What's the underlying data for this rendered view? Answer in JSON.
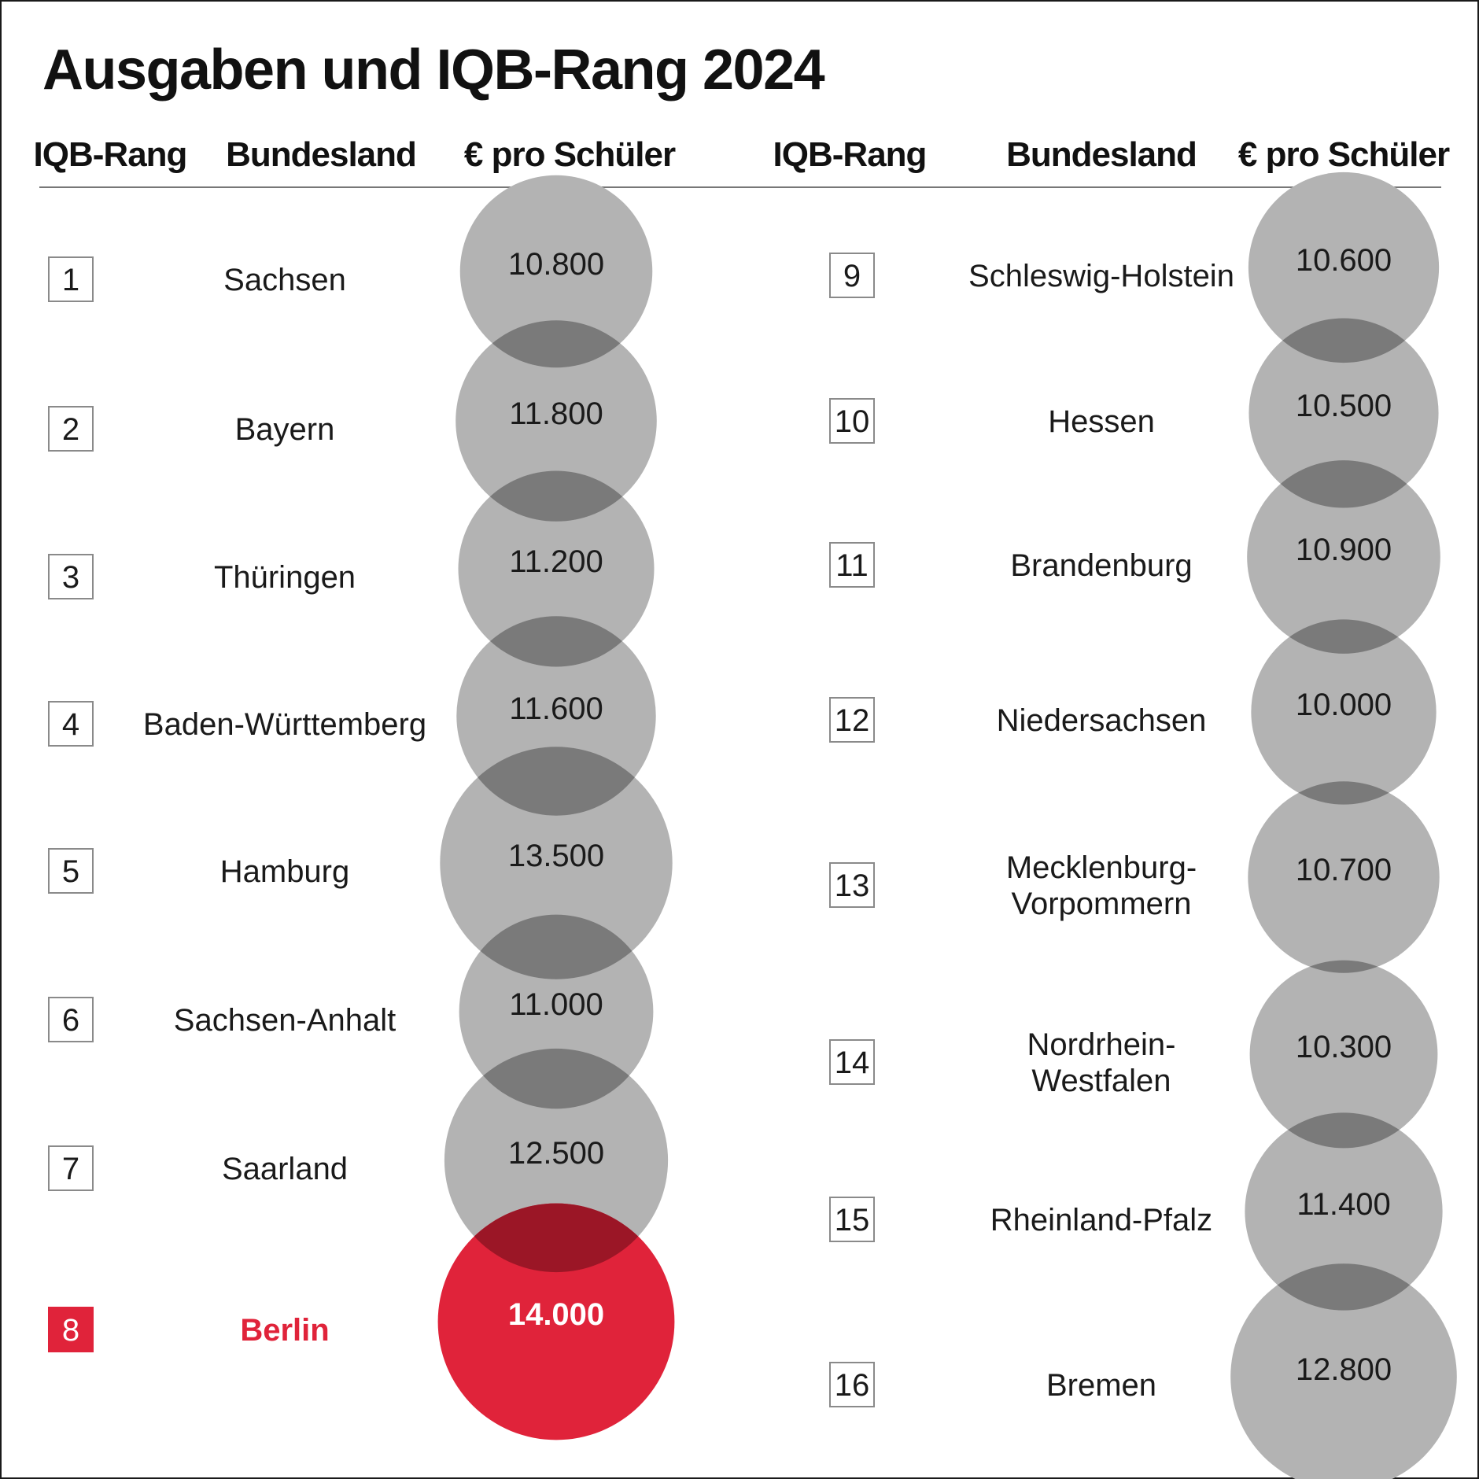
{
  "chart_data": {
    "type": "bubble-table",
    "title": "Ausgaben und IQB-Rang 2024",
    "columns": {
      "rank": "IQB-Rang",
      "state": "Bundesland",
      "spending": "€ pro Schüler"
    },
    "highlight_color": "#e0233a",
    "bubble_color": "#8c8c8c",
    "rows": [
      {
        "rank": "1",
        "state": "Sachsen",
        "label": "10.800",
        "value": 10800
      },
      {
        "rank": "2",
        "state": "Bayern",
        "label": "11.800",
        "value": 11800
      },
      {
        "rank": "3",
        "state": "Thüringen",
        "label": "11.200",
        "value": 11200
      },
      {
        "rank": "4",
        "state": "Baden-Württemberg",
        "label": "11.600",
        "value": 11600
      },
      {
        "rank": "5",
        "state": "Hamburg",
        "label": "13.500",
        "value": 13500
      },
      {
        "rank": "6",
        "state": "Sachsen-Anhalt",
        "label": "11.000",
        "value": 11000
      },
      {
        "rank": "7",
        "state": "Saarland",
        "label": "12.500",
        "value": 12500
      },
      {
        "rank": "8",
        "state": "Berlin",
        "label": "14.000",
        "value": 14000,
        "highlight": true
      },
      {
        "rank": "9",
        "state": "Schleswig-Holstein",
        "label": "10.600",
        "value": 10600
      },
      {
        "rank": "10",
        "state": "Hessen",
        "label": "10.500",
        "value": 10500
      },
      {
        "rank": "11",
        "state": "Brandenburg",
        "label": "10.900",
        "value": 10900
      },
      {
        "rank": "12",
        "state": "Niedersachsen",
        "label": "10.000",
        "value": 10000
      },
      {
        "rank": "13",
        "state": "Mecklenburg-Vorpommern",
        "state_lines": [
          "Mecklenburg-",
          "Vorpommern"
        ],
        "label": "10.700",
        "value": 10700
      },
      {
        "rank": "14",
        "state": "Nordrhein-Westfalen",
        "state_lines": [
          "Nordrhein-",
          "Westfalen"
        ],
        "label": "10.300",
        "value": 10300
      },
      {
        "rank": "15",
        "state": "Rheinland-Pfalz",
        "label": "11.400",
        "value": 11400
      },
      {
        "rank": "16",
        "state": "Bremen",
        "label": "12.800",
        "value": 12800
      }
    ]
  }
}
